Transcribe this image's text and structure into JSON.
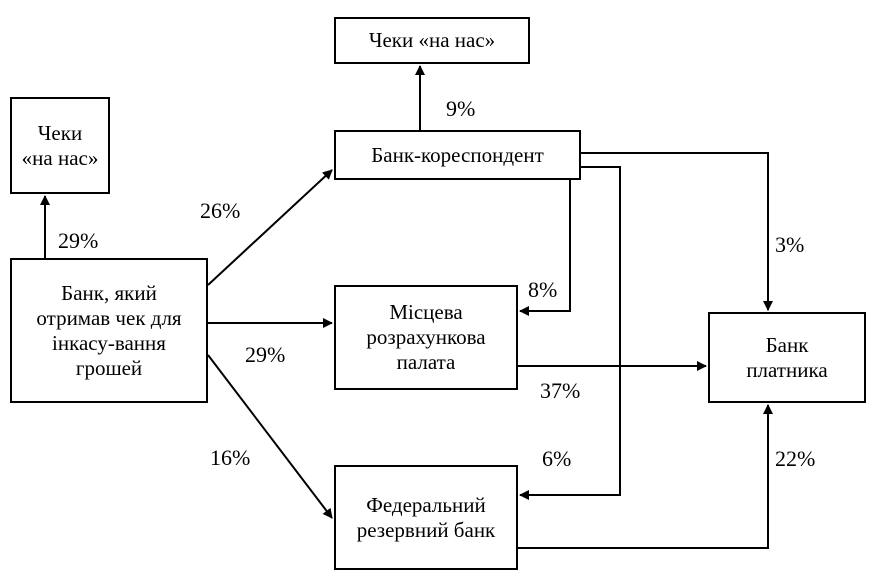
{
  "nodes": {
    "checks_top": "Чеки «на нас»",
    "checks_left": "Чеки «на нас»",
    "collecting_bank": "Банк, який отримав чек для інкасу-вання грошей",
    "correspondent_bank": "Банк-кореспондент",
    "clearing_house": "Місцева розрахункова палата",
    "federal_reserve": "Федеральний резервний банк",
    "payer_bank": "Банк платника"
  },
  "edges": {
    "collecting_to_checks": "29%",
    "collecting_to_correspondent": "26%",
    "collecting_to_clearing": "29%",
    "collecting_to_federal": "16%",
    "correspondent_to_checks": "9%",
    "correspondent_to_payer": "3%",
    "correspondent_to_clearing": "8%",
    "correspondent_to_federal": "6%",
    "clearing_to_payer": "37%",
    "federal_to_payer": "22%"
  }
}
